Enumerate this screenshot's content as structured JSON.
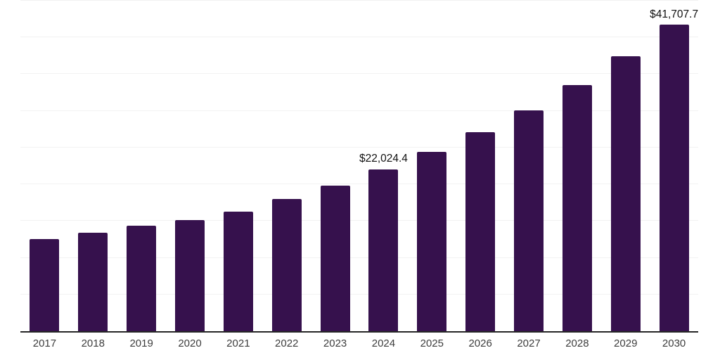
{
  "chart_data": {
    "type": "bar",
    "categories": [
      "2017",
      "2018",
      "2019",
      "2020",
      "2021",
      "2022",
      "2023",
      "2024",
      "2025",
      "2026",
      "2027",
      "2028",
      "2029",
      "2030"
    ],
    "values": [
      12500,
      13400,
      14400,
      15100,
      16300,
      18000,
      19800,
      22024.4,
      24400,
      27100,
      30100,
      33500,
      37400,
      41707.7
    ],
    "data_labels": {
      "2024": "$22,024.4",
      "2030": "$41,707.7"
    },
    "title": "",
    "xlabel": "",
    "ylabel": "",
    "ylim": [
      0,
      45000
    ],
    "gridline_interval": 5000,
    "grid": "horizontal-only",
    "legend": "none",
    "y_axis_ticks_visible": false
  },
  "colors": {
    "bar": "#36114d",
    "gridline": "#f2f2f2",
    "axis_line": "#262626",
    "tick_label": "#3d3d3d",
    "data_label": "#111111",
    "background": "#ffffff"
  }
}
